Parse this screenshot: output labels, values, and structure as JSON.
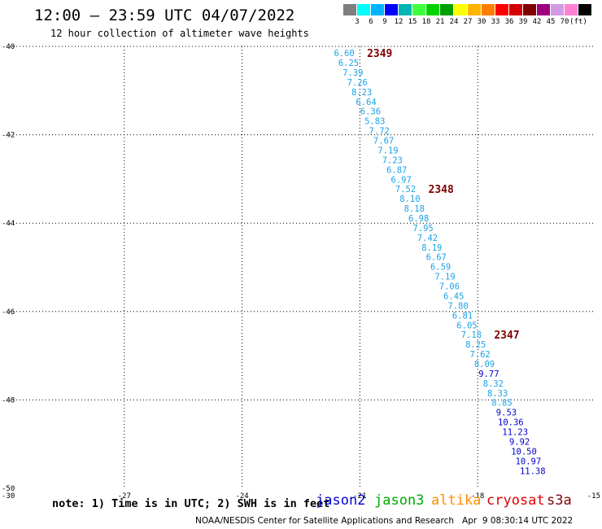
{
  "header": {
    "title": "12:00 – 23:59 UTC 04/07/2022",
    "subtitle": "12 hour collection of altimeter wave heights"
  },
  "color_scale": {
    "colors": [
      "#7f7f7f",
      "#00ffff",
      "#00b4ff",
      "#0000ff",
      "#00b4b4",
      "#40ff40",
      "#00d200",
      "#00a000",
      "#ffff00",
      "#ffb400",
      "#ff7f00",
      "#ff0000",
      "#d20000",
      "#800000",
      "#a00080",
      "#d29be6",
      "#ff82d2",
      "#000000"
    ],
    "labels": [
      "3",
      "6",
      "9",
      "12",
      "15",
      "18",
      "21",
      "24",
      "27",
      "30",
      "33",
      "36",
      "39",
      "42",
      "45",
      "70",
      "(ft)"
    ]
  },
  "map": {
    "lon_range": [
      -30,
      -15
    ],
    "lat_range": [
      -50,
      -40
    ],
    "lon_ticks": [
      "-30",
      "-27",
      "-24",
      "-21",
      "-18",
      "-15"
    ],
    "lat_ticks": [
      "-40",
      "-42",
      "-44",
      "-46",
      "-48",
      "-50"
    ],
    "grid_style": "dotted"
  },
  "satellites": [
    {
      "name": "jason2",
      "color": "#0000cc"
    },
    {
      "name": "jason3",
      "color": "#00aa00"
    },
    {
      "name": "altika",
      "color": "#ff8c00"
    },
    {
      "name": "cryosat",
      "color": "#dd0000"
    },
    {
      "name": "s3a",
      "color": "#800000"
    }
  ],
  "track": {
    "satellite": "jason3",
    "swh_ft": [
      "6.60",
      "6.25",
      "7.39",
      "7.26",
      "8.23",
      "6.64",
      "6.36",
      "5.83",
      "7.72",
      "7.67",
      "7.19",
      "7.23",
      "6.87",
      "6.97",
      "7.52",
      "8.10",
      "8.18",
      "6.98",
      "7.95",
      "7.42",
      "8.19",
      "6.67",
      "6.59",
      "7.19",
      "7.06",
      "6.45",
      "7.80",
      "6.81",
      "6.05",
      "7.18",
      "8.25",
      "7.62",
      "8.09",
      "9.77",
      "8.32",
      "8.33",
      "8.85",
      "9.53",
      "10.36",
      "11.23",
      "9.92",
      "10.50",
      "10.97",
      "11.38"
    ],
    "colors": [
      "#1aa3e6",
      "#1aa3e6",
      "#1aa3e6",
      "#1aa3e6",
      "#1aa3e6",
      "#1aa3e6",
      "#1aa3e6",
      "#1aa3e6",
      "#1aa3e6",
      "#1aa3e6",
      "#1aa3e6",
      "#1aa3e6",
      "#1aa3e6",
      "#1aa3e6",
      "#1aa3e6",
      "#1aa3e6",
      "#1aa3e6",
      "#1aa3e6",
      "#1aa3e6",
      "#1aa3e6",
      "#1aa3e6",
      "#1aa3e6",
      "#1aa3e6",
      "#1aa3e6",
      "#1aa3e6",
      "#1aa3e6",
      "#1aa3e6",
      "#1aa3e6",
      "#1aa3e6",
      "#1aa3e6",
      "#1aa3e6",
      "#1aa3e6",
      "#1aa3e6",
      "#0000cc",
      "#1aa3e6",
      "#1aa3e6",
      "#1aa3e6",
      "#0000cc",
      "#0000cc",
      "#0000cc",
      "#0000cc",
      "#0000cc",
      "#0000cc",
      "#0000cc"
    ],
    "time_labels": [
      "2349",
      "2348",
      "2347"
    ],
    "time_label_color": "#800000"
  },
  "footer": {
    "note": "note: 1) Time is in UTC; 2) SWH is in feet",
    "credit": "NOAA/NESDIS Center for Satellite Applications and Research   Apr  9 08:30:14 UTC 2022"
  }
}
